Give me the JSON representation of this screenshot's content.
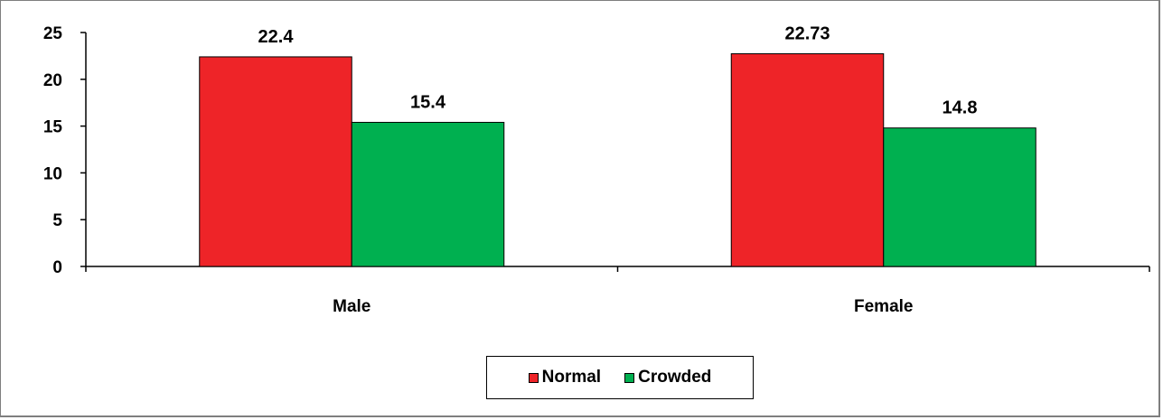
{
  "chart_data": {
    "type": "bar",
    "categories": [
      "Male",
      "Female"
    ],
    "series": [
      {
        "name": "Normal",
        "values": [
          22.4,
          22.73
        ],
        "labels": [
          "22.4",
          "22.73"
        ],
        "color": "#ee2428"
      },
      {
        "name": "Crowded",
        "values": [
          15.4,
          14.8
        ],
        "labels": [
          "15.4",
          "14.8"
        ],
        "color": "#00b050"
      }
    ],
    "yticks": [
      "0",
      "5",
      "10",
      "15",
      "20",
      "25"
    ],
    "ylim": [
      0,
      25
    ],
    "legend": "bottom-center",
    "grid": false
  }
}
